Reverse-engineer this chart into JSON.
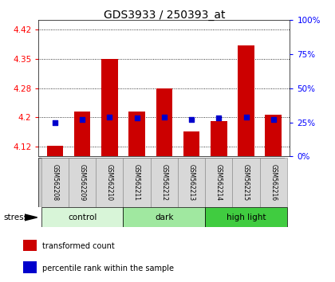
{
  "title": "GDS3933 / 250393_at",
  "samples": [
    "GSM562208",
    "GSM562209",
    "GSM562210",
    "GSM562211",
    "GSM562212",
    "GSM562213",
    "GSM562214",
    "GSM562215",
    "GSM562216"
  ],
  "transformed_counts": [
    4.127,
    4.215,
    4.35,
    4.215,
    4.275,
    4.165,
    4.19,
    4.385,
    4.207
  ],
  "percentile_ranks": [
    25,
    27,
    29,
    28,
    29,
    27,
    28,
    29,
    27
  ],
  "groups": [
    {
      "name": "control",
      "indices": [
        0,
        1,
        2
      ],
      "color": "#d8f5d8"
    },
    {
      "name": "dark",
      "indices": [
        3,
        4,
        5
      ],
      "color": "#a0e8a0"
    },
    {
      "name": "high light",
      "indices": [
        6,
        7,
        8
      ],
      "color": "#40cc40"
    }
  ],
  "ylim_left": [
    4.1,
    4.45
  ],
  "ylim_right": [
    0,
    100
  ],
  "yticks_left": [
    4.125,
    4.2,
    4.275,
    4.35,
    4.425
  ],
  "yticks_right": [
    0,
    25,
    50,
    75,
    100
  ],
  "bar_color": "#cc0000",
  "dot_color": "#0000cc",
  "baseline": 4.1,
  "bar_width": 0.6,
  "background_color": "#ffffff",
  "plot_bg_color": "#ffffff",
  "stress_label": "stress",
  "legend_items": [
    {
      "label": "transformed count",
      "color": "#cc0000"
    },
    {
      "label": "percentile rank within the sample",
      "color": "#0000cc"
    }
  ]
}
